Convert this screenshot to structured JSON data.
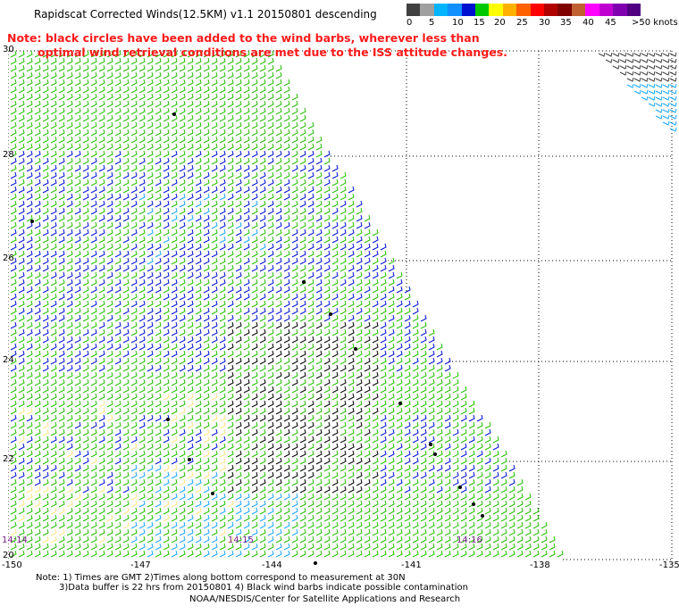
{
  "title": "Rapidscat Corrected Winds(12.5KM) v1.1 20150801 descending",
  "note": {
    "line1": "Note: black circles have been added to the wind barbs, wherever less than",
    "line2": "optimal wind retrieval conditions are met due to the ISS attitude changes."
  },
  "legend": {
    "colors": [
      "#404040",
      "#a0a0a0",
      "#00b4ff",
      "#1090ff",
      "#0010d0",
      "#00c800",
      "#ffff00",
      "#ffb000",
      "#ff6000",
      "#ff0000",
      "#b00000",
      "#800000",
      "#c06030",
      "#ff00ff",
      "#c000d0",
      "#8000b0",
      "#500080"
    ],
    "labels": [
      "0",
      "5",
      "10",
      "15",
      "20",
      "25",
      "30",
      "35",
      "40",
      "45",
      ">50 knots"
    ]
  },
  "axes": {
    "lat_labels": [
      "30",
      "28",
      "26",
      "24",
      "22",
      "20"
    ],
    "lon_labels": [
      "-150",
      "-147",
      "-144",
      "-141",
      "-138",
      "-135"
    ]
  },
  "times": [
    "14:14",
    "14:15",
    "14:16"
  ],
  "footer": {
    "line1": "Note: 1) Times are GMT 2)Times along bottom correspond to measurement at 30N",
    "line2": "3)Data buffer is 22 hrs from 20150801 4) Black wind barbs indicate possible contamination",
    "line3": "NOAA/NESDIS/Center for Satellite Applications and Research"
  }
}
